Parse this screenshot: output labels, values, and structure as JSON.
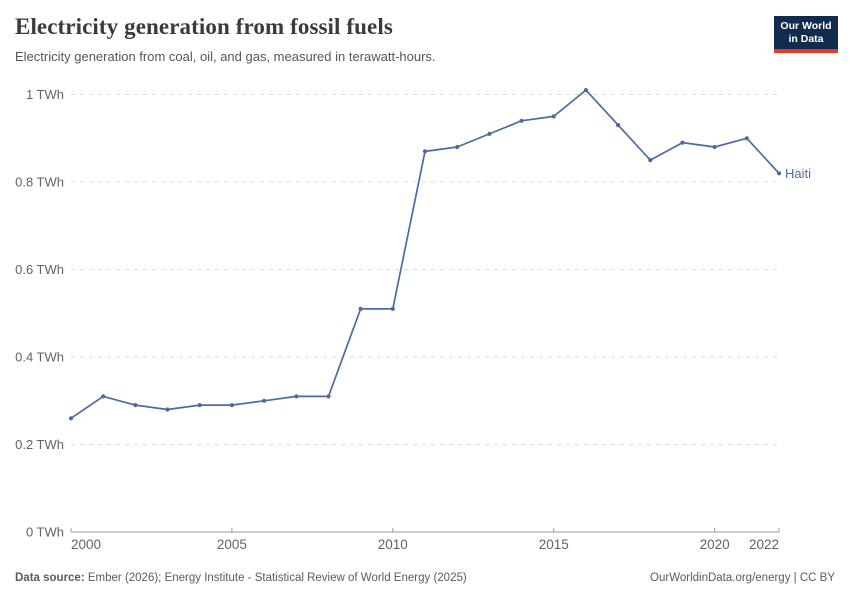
{
  "header": {
    "title": "Electricity generation from fossil fuels",
    "subtitle": "Electricity generation from coal, oil, and gas, measured in terawatt-hours.",
    "logo": {
      "line1": "Our World",
      "line2": "in Data"
    }
  },
  "chart_data": {
    "type": "line",
    "title": "Electricity generation from fossil fuels",
    "subtitle": "Electricity generation from coal, oil, and gas, measured in terawatt-hours.",
    "unit": "TWh",
    "x": [
      2000,
      2001,
      2002,
      2003,
      2004,
      2005,
      2006,
      2007,
      2008,
      2009,
      2010,
      2011,
      2012,
      2013,
      2014,
      2015,
      2016,
      2017,
      2018,
      2019,
      2020,
      2021,
      2022
    ],
    "series": [
      {
        "name": "Haiti",
        "color": "#4d6ba3",
        "values": [
          0.26,
          0.31,
          0.29,
          0.28,
          0.29,
          0.29,
          0.3,
          0.31,
          0.31,
          0.51,
          0.51,
          0.87,
          0.88,
          0.91,
          0.94,
          0.95,
          1.01,
          0.93,
          0.85,
          0.89,
          0.88,
          0.9,
          0.82
        ]
      }
    ],
    "xlim": [
      2000,
      2022
    ],
    "ylim": [
      0,
      1
    ],
    "x_ticks": [
      {
        "value": 2000,
        "label": "2000"
      },
      {
        "value": 2005,
        "label": "2005"
      },
      {
        "value": 2010,
        "label": "2010"
      },
      {
        "value": 2015,
        "label": "2015"
      },
      {
        "value": 2020,
        "label": "2020"
      },
      {
        "value": 2022,
        "label": "2022"
      }
    ],
    "y_ticks": [
      {
        "value": 0,
        "label": "0 TWh"
      },
      {
        "value": 0.2,
        "label": "0.2 TWh"
      },
      {
        "value": 0.4,
        "label": "0.4 TWh"
      },
      {
        "value": 0.6,
        "label": "0.6 TWh"
      },
      {
        "value": 0.8,
        "label": "0.8 TWh"
      },
      {
        "value": 1,
        "label": "1 TWh"
      }
    ],
    "grid": "horizontal-dashed",
    "legend": "line-end-label"
  },
  "colors": {
    "line": "#4d6ba3",
    "grid": "#dcdcdc",
    "axis": "#9b9b9b",
    "tick_label": "#636363",
    "title": "#3b3b3b",
    "subtitle": "#565656",
    "footer": "#5b5b5b",
    "logo_bg": "#122B4E",
    "logo_accent": "#E23B2E"
  },
  "footer": {
    "datasource_label": "Data source:",
    "datasource_text": "Ember (2026); Energy Institute - Statistical Review of World Energy (2025)",
    "link_text": "OurWorldinData.org/energy",
    "separator": " | ",
    "license_text": "CC BY"
  }
}
